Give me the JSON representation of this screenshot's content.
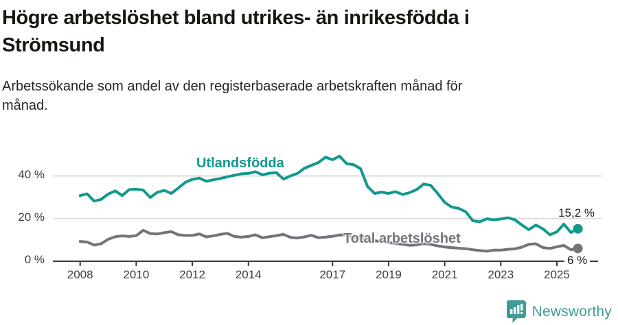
{
  "header": {
    "title": "Högre arbetslöshet bland utrikes- än inrikesfödda i Strömsund",
    "subtitle": "Arbetssökande som andel av den registerbaserade arbetskraften månad för månad."
  },
  "chart_data": {
    "type": "line",
    "title": "Högre arbetslöshet bland utrikes- än inrikesfödda i Strömsund",
    "subtitle": "Arbetssökande som andel av den registerbaserade arbetskraften månad för månad.",
    "unit": "%",
    "x_start": 2008,
    "x_step": 0.25,
    "xlim": [
      2007.0,
      2026.5
    ],
    "ylim": [
      0,
      52
    ],
    "grid": true,
    "legend_position": "inline-labels",
    "x_tick_labels": [
      "2008",
      "2010",
      "2012",
      "2014",
      "2017",
      "2019",
      "2021",
      "2023",
      "2025"
    ],
    "y_ticks": [
      {
        "value": 0,
        "label": "0 %"
      },
      {
        "value": 20,
        "label": "20 %"
      },
      {
        "value": 40,
        "label": "40 %"
      }
    ],
    "series": [
      {
        "name": "Utlandsfödda",
        "color": "#12998c",
        "end_label": "15,2 %",
        "end_value": 15.2,
        "values": [
          30.8,
          31.6,
          28.2,
          29.0,
          31.5,
          33.0,
          30.8,
          33.6,
          33.8,
          33.3,
          29.9,
          32.3,
          33.2,
          31.8,
          34.3,
          37.0,
          38.4,
          39.0,
          37.5,
          38.2,
          38.8,
          39.6,
          40.3,
          41.0,
          41.2,
          42.0,
          40.5,
          41.3,
          41.5,
          38.5,
          40.0,
          41.2,
          43.6,
          45.0,
          46.3,
          48.8,
          47.6,
          49.3,
          45.8,
          45.3,
          43.4,
          35.0,
          31.8,
          32.4,
          31.8,
          32.6,
          31.3,
          32.2,
          33.6,
          36.2,
          35.6,
          31.8,
          27.6,
          25.4,
          24.8,
          23.2,
          19.0,
          18.5,
          19.9,
          19.4,
          19.8,
          20.4,
          19.5,
          17.0,
          14.8,
          17.0,
          15.2,
          12.4,
          13.8,
          17.4,
          13.5,
          15.2
        ]
      },
      {
        "name": "Total arbetslöshet",
        "color": "#75737a",
        "end_label": "6 %",
        "end_value": 6,
        "values": [
          9.3,
          9.0,
          7.6,
          8.2,
          10.3,
          11.5,
          11.9,
          11.6,
          12.0,
          14.5,
          13.0,
          12.8,
          13.4,
          13.9,
          12.4,
          12.1,
          12.1,
          12.8,
          11.4,
          11.9,
          12.6,
          13.1,
          11.6,
          11.3,
          11.6,
          12.4,
          11.0,
          11.5,
          12.0,
          12.6,
          11.2,
          10.9,
          11.4,
          12.2,
          11.0,
          11.3,
          11.7,
          12.3,
          12.4,
          11.2,
          10.4,
          10.9,
          9.6,
          9.2,
          8.8,
          8.4,
          7.9,
          7.5,
          7.7,
          8.3,
          7.9,
          7.2,
          6.7,
          6.4,
          6.1,
          5.9,
          5.4,
          5.0,
          4.7,
          5.2,
          5.2,
          5.6,
          5.8,
          6.6,
          7.9,
          8.2,
          6.4,
          6.0,
          6.8,
          7.4,
          5.4,
          6.0
        ]
      }
    ]
  },
  "colors": {
    "accent_teal": "#12998c",
    "neutral_gray": "#75737a",
    "gridline": "#dedede",
    "axis": "#3a3a3a"
  },
  "logo": {
    "text": "Newsworthy",
    "color": "#3f9d95",
    "icon": "newsworthy-bar-chart-bubble-icon"
  }
}
